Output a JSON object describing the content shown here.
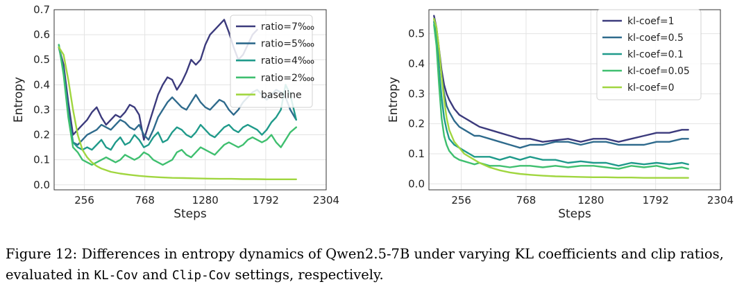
{
  "colors": {
    "seq5": [
      "#3b3a7c",
      "#2e6a8c",
      "#1f9a8a",
      "#3fbf6f",
      "#a0d63f"
    ]
  },
  "chart_data": [
    {
      "type": "line",
      "xlabel": "Steps",
      "ylabel": "Entropy",
      "xlim": [
        0,
        2304
      ],
      "ylim": [
        -0.02,
        0.7
      ],
      "xticks": [
        256,
        768,
        1280,
        1792,
        2304
      ],
      "yticks": [
        0.0,
        0.1,
        0.2,
        0.3,
        0.4,
        0.5,
        0.6,
        0.7
      ],
      "ytick_labels": [
        "0.0",
        "0.1",
        "0.2",
        "0.3",
        "0.4",
        "0.5",
        "0.6",
        "0.7"
      ],
      "grid": true,
      "legend_position": "top-right",
      "series": [
        {
          "name": "ratio=7%ooo",
          "x": [
            40,
            80,
            120,
            160,
            200,
            240,
            280,
            320,
            360,
            400,
            440,
            480,
            520,
            560,
            600,
            640,
            680,
            720,
            760,
            800,
            840,
            880,
            920,
            960,
            1000,
            1040,
            1080,
            1120,
            1160,
            1200,
            1240,
            1280,
            1320,
            1360,
            1400,
            1440,
            1480,
            1520,
            1560,
            1600,
            1640,
            1680,
            1720
          ],
          "y": [
            0.55,
            0.48,
            0.33,
            0.2,
            0.22,
            0.24,
            0.26,
            0.29,
            0.31,
            0.27,
            0.24,
            0.26,
            0.28,
            0.27,
            0.29,
            0.32,
            0.31,
            0.28,
            0.18,
            0.24,
            0.3,
            0.36,
            0.4,
            0.43,
            0.42,
            0.38,
            0.41,
            0.45,
            0.5,
            0.48,
            0.5,
            0.56,
            0.6,
            0.62,
            0.64,
            0.66,
            0.61,
            0.55,
            0.5,
            0.52,
            0.56,
            0.6,
            0.62
          ]
        },
        {
          "name": "ratio=5%ooo",
          "x": [
            40,
            80,
            120,
            160,
            200,
            240,
            280,
            320,
            360,
            400,
            440,
            480,
            520,
            560,
            600,
            640,
            680,
            720,
            760,
            800,
            840,
            880,
            920,
            960,
            1000,
            1040,
            1080,
            1120,
            1160,
            1200,
            1240,
            1280,
            1320,
            1360,
            1400,
            1440,
            1480,
            1520,
            1560,
            1600,
            1640,
            1680,
            1720,
            1760,
            1800,
            1840,
            1880,
            1920,
            1960,
            2000,
            2050
          ],
          "y": [
            0.55,
            0.46,
            0.3,
            0.17,
            0.16,
            0.18,
            0.2,
            0.21,
            0.22,
            0.24,
            0.23,
            0.22,
            0.24,
            0.26,
            0.25,
            0.23,
            0.22,
            0.24,
            0.2,
            0.18,
            0.22,
            0.27,
            0.3,
            0.33,
            0.35,
            0.33,
            0.31,
            0.3,
            0.33,
            0.36,
            0.33,
            0.31,
            0.3,
            0.32,
            0.34,
            0.33,
            0.3,
            0.28,
            0.3,
            0.33,
            0.35,
            0.37,
            0.38,
            0.36,
            0.34,
            0.36,
            0.38,
            0.37,
            0.35,
            0.3,
            0.26
          ]
        },
        {
          "name": "ratio=4%ooo",
          "x": [
            40,
            80,
            120,
            160,
            200,
            240,
            280,
            320,
            360,
            400,
            440,
            480,
            520,
            560,
            600,
            640,
            680,
            720,
            760,
            800,
            840,
            880,
            920,
            960,
            1000,
            1040,
            1080,
            1120,
            1160,
            1200,
            1240,
            1280,
            1320,
            1360,
            1400,
            1440,
            1480,
            1520,
            1560,
            1600,
            1640,
            1680,
            1720,
            1760,
            1800,
            1840,
            1880,
            1920,
            1960,
            2000,
            2050
          ],
          "y": [
            0.56,
            0.45,
            0.28,
            0.17,
            0.15,
            0.14,
            0.15,
            0.14,
            0.16,
            0.18,
            0.15,
            0.14,
            0.17,
            0.19,
            0.16,
            0.17,
            0.2,
            0.18,
            0.15,
            0.16,
            0.19,
            0.21,
            0.17,
            0.18,
            0.21,
            0.23,
            0.22,
            0.2,
            0.19,
            0.21,
            0.24,
            0.22,
            0.2,
            0.19,
            0.21,
            0.23,
            0.24,
            0.22,
            0.21,
            0.23,
            0.24,
            0.23,
            0.22,
            0.2,
            0.22,
            0.25,
            0.27,
            0.3,
            0.4,
            0.36,
            0.26
          ]
        },
        {
          "name": "ratio=2%ooo",
          "x": [
            40,
            80,
            120,
            160,
            200,
            240,
            280,
            320,
            360,
            400,
            440,
            480,
            520,
            560,
            600,
            640,
            680,
            720,
            760,
            800,
            840,
            880,
            920,
            960,
            1000,
            1040,
            1080,
            1120,
            1160,
            1200,
            1240,
            1280,
            1320,
            1360,
            1400,
            1440,
            1480,
            1520,
            1560,
            1600,
            1640,
            1680,
            1720,
            1760,
            1800,
            1840,
            1880,
            1920,
            1960,
            2000,
            2050
          ],
          "y": [
            0.56,
            0.44,
            0.27,
            0.15,
            0.13,
            0.1,
            0.09,
            0.08,
            0.09,
            0.1,
            0.11,
            0.1,
            0.09,
            0.1,
            0.12,
            0.11,
            0.1,
            0.11,
            0.13,
            0.12,
            0.1,
            0.09,
            0.08,
            0.09,
            0.1,
            0.13,
            0.14,
            0.12,
            0.11,
            0.13,
            0.15,
            0.14,
            0.13,
            0.12,
            0.14,
            0.16,
            0.17,
            0.16,
            0.15,
            0.16,
            0.18,
            0.19,
            0.18,
            0.17,
            0.18,
            0.2,
            0.17,
            0.15,
            0.18,
            0.21,
            0.23
          ]
        },
        {
          "name": "baseline",
          "x": [
            40,
            80,
            120,
            160,
            200,
            240,
            280,
            320,
            360,
            400,
            480,
            560,
            640,
            720,
            800,
            900,
            1000,
            1100,
            1200,
            1300,
            1400,
            1500,
            1600,
            1700,
            1800,
            1900,
            2000,
            2050
          ],
          "y": [
            0.55,
            0.52,
            0.42,
            0.3,
            0.2,
            0.14,
            0.11,
            0.09,
            0.075,
            0.065,
            0.052,
            0.045,
            0.04,
            0.036,
            0.033,
            0.03,
            0.028,
            0.027,
            0.026,
            0.025,
            0.024,
            0.024,
            0.023,
            0.023,
            0.022,
            0.022,
            0.022,
            0.022
          ]
        }
      ]
    },
    {
      "type": "line",
      "xlabel": "Steps",
      "ylabel": "Entropy",
      "xlim": [
        0,
        2304
      ],
      "ylim": [
        -0.02,
        0.58
      ],
      "xticks": [
        256,
        768,
        1280,
        1792,
        2304
      ],
      "yticks": [
        0.0,
        0.1,
        0.2,
        0.3,
        0.4,
        0.5
      ],
      "ytick_labels": [
        "0.0",
        "0.1",
        "0.2",
        "0.3",
        "0.4",
        "0.5"
      ],
      "grid": true,
      "legend_position": "top-right",
      "series": [
        {
          "name": "kl-coef=1",
          "x": [
            40,
            60,
            80,
            100,
            120,
            140,
            160,
            200,
            240,
            280,
            320,
            360,
            400,
            480,
            560,
            640,
            720,
            800,
            900,
            1000,
            1100,
            1200,
            1300,
            1400,
            1500,
            1600,
            1700,
            1800,
            1900,
            2000,
            2050
          ],
          "y": [
            0.56,
            0.52,
            0.45,
            0.38,
            0.33,
            0.3,
            0.28,
            0.25,
            0.23,
            0.22,
            0.21,
            0.2,
            0.19,
            0.18,
            0.17,
            0.16,
            0.15,
            0.15,
            0.14,
            0.145,
            0.15,
            0.14,
            0.15,
            0.15,
            0.14,
            0.15,
            0.16,
            0.17,
            0.17,
            0.18,
            0.18
          ]
        },
        {
          "name": "kl-coef=0.5",
          "x": [
            40,
            60,
            80,
            100,
            120,
            140,
            160,
            200,
            240,
            280,
            320,
            360,
            400,
            480,
            560,
            640,
            720,
            800,
            900,
            1000,
            1100,
            1200,
            1300,
            1400,
            1500,
            1600,
            1700,
            1800,
            1900,
            2000,
            2050
          ],
          "y": [
            0.55,
            0.5,
            0.43,
            0.36,
            0.3,
            0.26,
            0.24,
            0.21,
            0.19,
            0.18,
            0.17,
            0.16,
            0.16,
            0.15,
            0.14,
            0.13,
            0.12,
            0.13,
            0.13,
            0.14,
            0.14,
            0.13,
            0.14,
            0.14,
            0.13,
            0.13,
            0.13,
            0.14,
            0.14,
            0.15,
            0.15
          ]
        },
        {
          "name": "kl-coef=0.1",
          "x": [
            40,
            60,
            80,
            100,
            120,
            140,
            160,
            200,
            240,
            280,
            320,
            360,
            400,
            480,
            560,
            640,
            720,
            800,
            900,
            1000,
            1100,
            1200,
            1300,
            1400,
            1500,
            1600,
            1700,
            1800,
            1900,
            2000,
            2050
          ],
          "y": [
            0.54,
            0.48,
            0.38,
            0.29,
            0.22,
            0.18,
            0.15,
            0.13,
            0.12,
            0.11,
            0.1,
            0.09,
            0.09,
            0.09,
            0.08,
            0.09,
            0.08,
            0.09,
            0.08,
            0.08,
            0.07,
            0.075,
            0.07,
            0.07,
            0.06,
            0.07,
            0.065,
            0.07,
            0.065,
            0.07,
            0.065
          ]
        },
        {
          "name": "kl-coef=0.05",
          "x": [
            40,
            60,
            80,
            100,
            120,
            140,
            160,
            200,
            240,
            280,
            320,
            360,
            400,
            480,
            560,
            640,
            720,
            800,
            900,
            1000,
            1100,
            1200,
            1300,
            1400,
            1500,
            1600,
            1700,
            1800,
            1900,
            2000,
            2050
          ],
          "y": [
            0.53,
            0.46,
            0.33,
            0.22,
            0.16,
            0.13,
            0.11,
            0.09,
            0.08,
            0.075,
            0.07,
            0.065,
            0.07,
            0.06,
            0.06,
            0.055,
            0.06,
            0.06,
            0.055,
            0.06,
            0.055,
            0.06,
            0.06,
            0.055,
            0.05,
            0.06,
            0.055,
            0.06,
            0.05,
            0.055,
            0.05
          ]
        },
        {
          "name": "kl-coef=0",
          "x": [
            40,
            60,
            80,
            100,
            120,
            140,
            160,
            200,
            240,
            280,
            320,
            360,
            400,
            480,
            560,
            640,
            720,
            800,
            900,
            1000,
            1100,
            1200,
            1300,
            1400,
            1500,
            1600,
            1700,
            1800,
            1900,
            2000,
            2050
          ],
          "y": [
            0.55,
            0.52,
            0.45,
            0.36,
            0.28,
            0.22,
            0.18,
            0.14,
            0.12,
            0.1,
            0.09,
            0.08,
            0.07,
            0.055,
            0.045,
            0.038,
            0.033,
            0.03,
            0.027,
            0.025,
            0.024,
            0.023,
            0.022,
            0.022,
            0.021,
            0.021,
            0.02,
            0.02,
            0.02,
            0.02,
            0.02
          ]
        }
      ]
    }
  ],
  "caption": {
    "line1": "Figure 12: Differences in entropy dynamics of Qwen2.5-7B under varying KL coefficients and clip ratios,",
    "line2_a": "evaluated in ",
    "line2_code1": "KL-Cov",
    "line2_b": " and ",
    "line2_code2": "Clip-Cov",
    "line2_c": " settings, respectively."
  }
}
